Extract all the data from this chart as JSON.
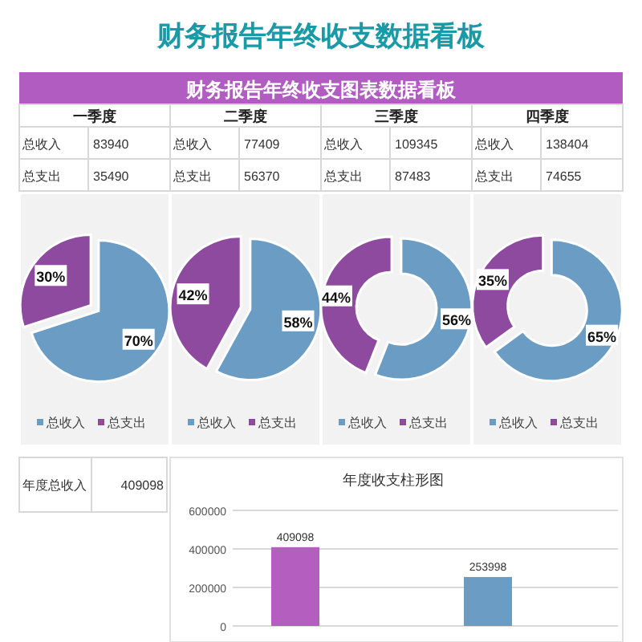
{
  "chart_data": [
    {
      "type": "other",
      "title": "财务报告年终收支数据看板",
      "subtitle": "财务报告年终收支图表数据看板",
      "annotations": [
        "一季度",
        "二季度",
        "三季度",
        "四季度",
        "总收入",
        "83940",
        "总收入",
        "77409",
        "总收入",
        "109345",
        "总收入",
        "138404",
        "总支出",
        "35490",
        "总支出",
        "56370",
        "总支出",
        "87483",
        "总支出",
        "74655"
      ]
    },
    {
      "type": "pie",
      "categories": [
        "总收入",
        "总支出"
      ],
      "values": [
        70,
        30
      ],
      "value_labels": [
        "70%",
        "30%"
      ],
      "colors": [
        "#6b9dc4",
        "#8e4a9e"
      ],
      "legend": "bottom"
    },
    {
      "type": "pie",
      "categories": [
        "总收入",
        "总支出"
      ],
      "values": [
        58,
        42
      ],
      "value_labels": [
        "58%",
        "42%"
      ],
      "colors": [
        "#6b9dc4",
        "#8e4a9e"
      ],
      "legend": "bottom"
    },
    {
      "type": "donut",
      "categories": [
        "总收入",
        "总支出"
      ],
      "values": [
        56,
        44
      ],
      "value_labels": [
        "56%",
        "44%"
      ],
      "colors": [
        "#6b9dc4",
        "#8e4a9e"
      ],
      "legend": "bottom"
    },
    {
      "type": "donut",
      "categories": [
        "总收入",
        "总支出"
      ],
      "values": [
        65,
        35
      ],
      "value_labels": [
        "65%",
        "35%"
      ],
      "colors": [
        "#6b9dc4",
        "#8e4a9e"
      ],
      "legend": "bottom"
    },
    {
      "type": "other",
      "annotations": [
        "年度总收入",
        "409098"
      ]
    },
    {
      "type": "bar",
      "title": "年度收支柱形图",
      "categories": [
        null,
        null
      ],
      "values": [
        409098,
        253998
      ],
      "colors": [
        "#b45fbf",
        "#6b9dc4"
      ],
      "ylim": [
        0,
        600000
      ],
      "yticks": [
        0,
        200000,
        400000,
        600000
      ],
      "grid": "y",
      "data_labels": true
    }
  ]
}
